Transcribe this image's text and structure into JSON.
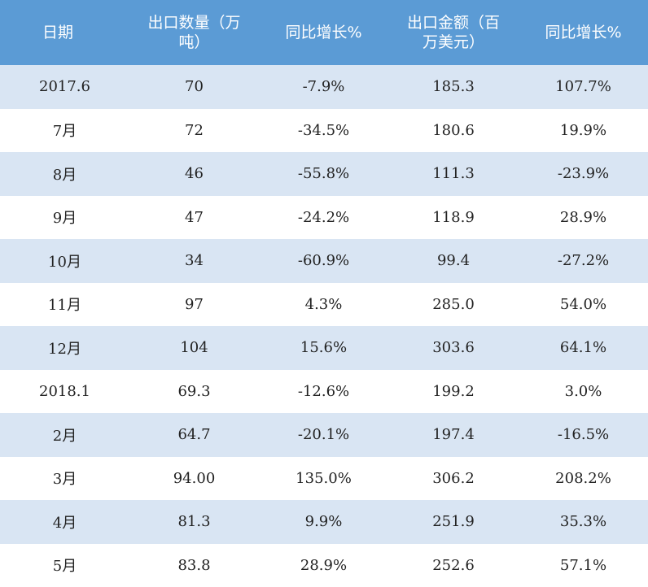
{
  "headers": [
    "日期",
    "出口数量（万\n吨）",
    "同比增长%",
    "出口金额（百\n万美元）",
    "同比增长%"
  ],
  "rows": [
    [
      "2017.6",
      "70",
      "-7.9%",
      "185.3",
      "107.7%"
    ],
    [
      "7月",
      "72",
      "-34.5%",
      "180.6",
      "19.9%"
    ],
    [
      "8月",
      "46",
      "-55.8%",
      "111.3",
      "-23.9%"
    ],
    [
      "9月",
      "47",
      "-24.2%",
      "118.9",
      "28.9%"
    ],
    [
      "10月",
      "34",
      "-60.9%",
      "99.4",
      "-27.2%"
    ],
    [
      "11月",
      "97",
      "4.3%",
      "285.0",
      "54.0%"
    ],
    [
      "12月",
      "104",
      "15.6%",
      "303.6",
      "64.1%"
    ],
    [
      "2018.1",
      "69.3",
      "-12.6%",
      "199.2",
      "3.0%"
    ],
    [
      "2月",
      "64.7",
      "-20.1%",
      "197.4",
      "-16.5%"
    ],
    [
      "3月",
      "94.00",
      "135.0%",
      "306.2",
      "208.2%"
    ],
    [
      "4月",
      "81.3",
      "9.9%",
      "251.9",
      "35.3%"
    ],
    [
      "5月",
      "83.8",
      "28.9%",
      "252.6",
      "57.1%"
    ]
  ],
  "colors": {
    "header_bg": "#5b9bd5",
    "stripe_bg": "#d9e5f3",
    "plain_bg": "#ffffff"
  }
}
